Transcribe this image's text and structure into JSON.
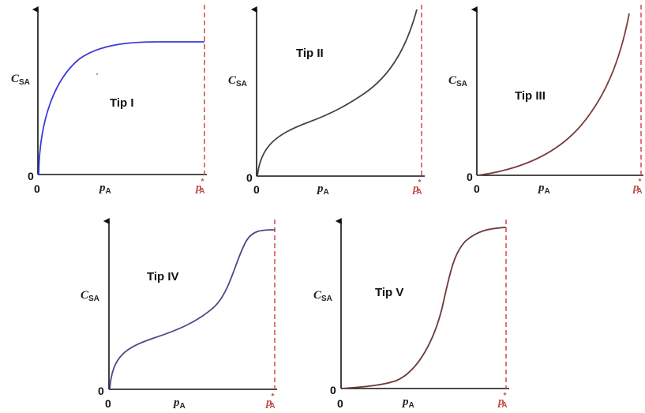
{
  "labels": {
    "y_main": "C",
    "y_sub": "SA",
    "x_main": "p",
    "x_sub": "A",
    "zero": "0",
    "sat_main": "p",
    "sat_sub": "A",
    "sat_star": "*"
  },
  "colors": {
    "axis": "#111111",
    "saturation_line": "#d9534f",
    "tip_I_curve": "#3b3bd6",
    "tip_II_curve": "#3d4a3a",
    "tip_III_curve": "#7a3b3b",
    "tip_IV_curve": "#4a4a8a",
    "tip_V_curve": "#6b3a3a"
  },
  "panels": [
    {
      "id": "tip-1",
      "title": "Tip I",
      "curve": "type-1"
    },
    {
      "id": "tip-2",
      "title": "Tip II",
      "curve": "type-2"
    },
    {
      "id": "tip-3",
      "title": "Tip III",
      "curve": "type-3"
    },
    {
      "id": "tip-4",
      "title": "Tip IV",
      "curve": "type-4"
    },
    {
      "id": "tip-5",
      "title": "Tip V",
      "curve": "type-5"
    }
  ]
}
